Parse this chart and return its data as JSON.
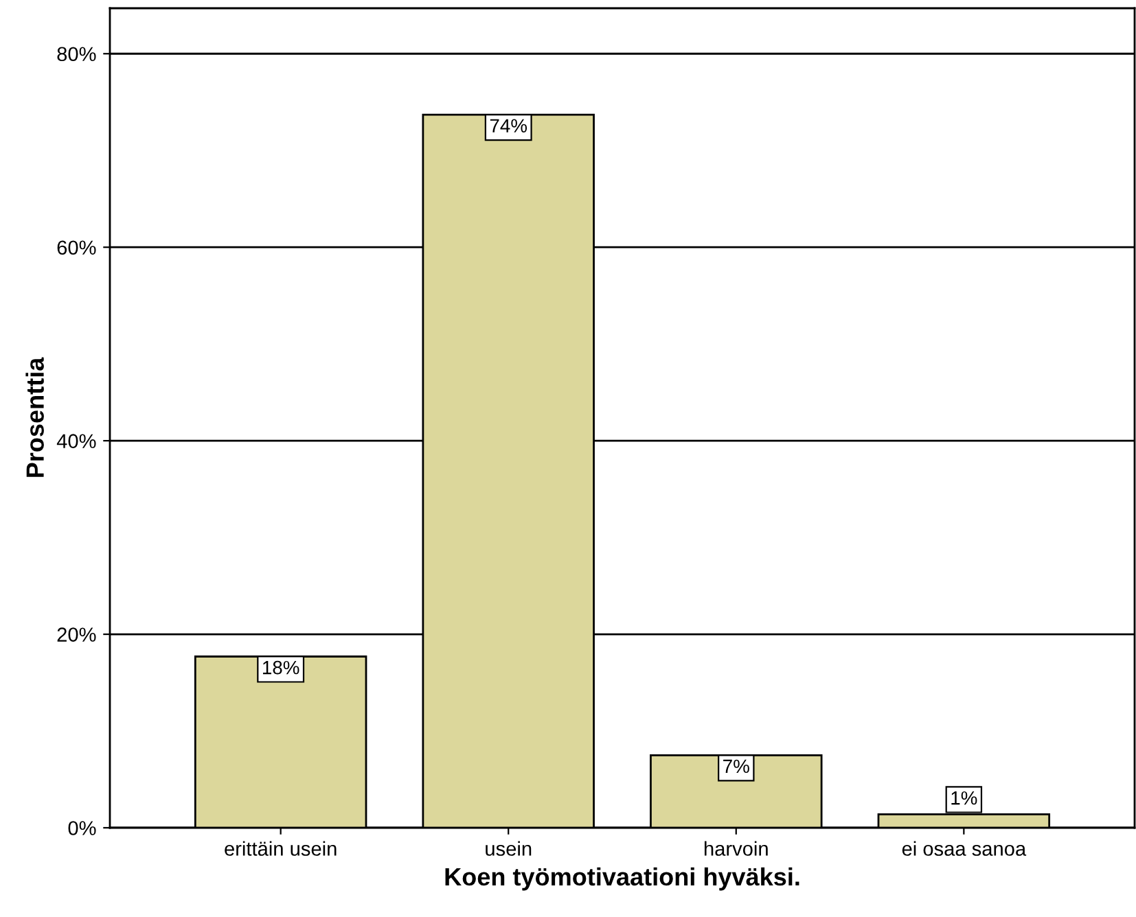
{
  "chart_data": {
    "type": "bar",
    "xlabel": "Koen työmotivaationi hyväksi.",
    "ylabel": "Prosenttia",
    "categories": [
      "erittäin usein",
      "usein",
      "harvoin",
      "ei osaa sanoa"
    ],
    "values": [
      17.7,
      73.7,
      7.5,
      1.4
    ],
    "value_labels": [
      "18%",
      "74%",
      "7%",
      "1%"
    ],
    "color": "#dcd79b",
    "ylim": [
      0,
      84.7
    ],
    "yticks": [
      {
        "value": 0,
        "label": "0%"
      },
      {
        "value": 20,
        "label": "20%"
      },
      {
        "value": 40,
        "label": "40%"
      },
      {
        "value": 60,
        "label": "60%"
      },
      {
        "value": 80,
        "label": "80%"
      }
    ],
    "grid": "y"
  }
}
